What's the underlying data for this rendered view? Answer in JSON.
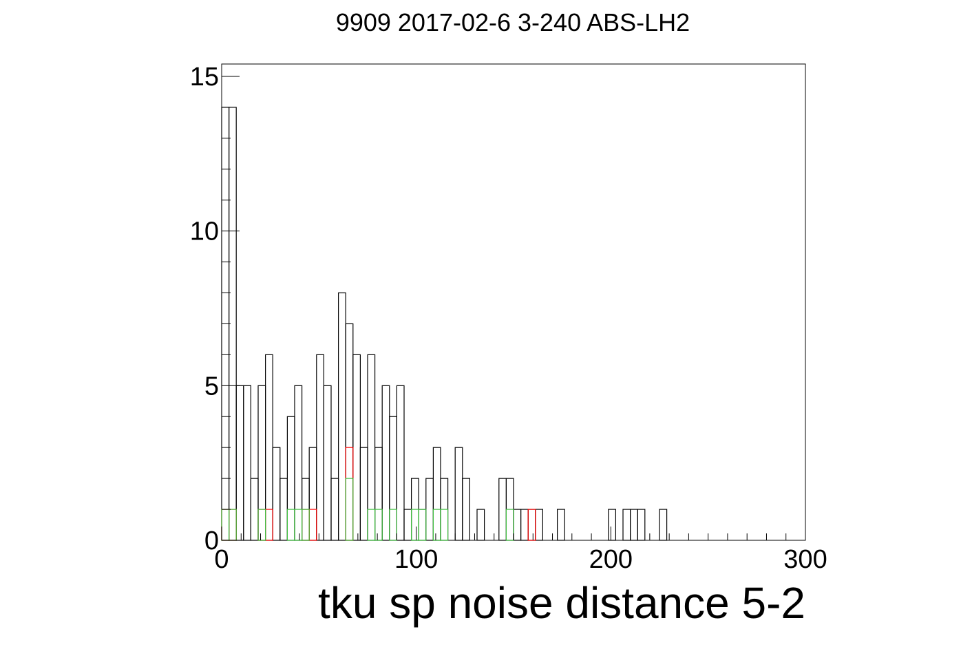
{
  "chart_data": {
    "type": "bar",
    "title": "9909 2017-02-6 3-240 ABS-LH2",
    "xlabel": "tku sp noise distance 5-2",
    "ylabel": "",
    "xlim": [
      0,
      300
    ],
    "ylim": [
      0,
      15.4
    ],
    "bin_width": 3.75,
    "x_ticks": [
      "0",
      "100",
      "200",
      "300"
    ],
    "y_ticks": [
      "0",
      "5",
      "10",
      "15"
    ],
    "grid": false,
    "legend": "none",
    "style": "step-histogram",
    "series": [
      {
        "color": "#000000",
        "values": [
          14,
          14,
          5,
          5,
          2,
          5,
          6,
          3,
          2,
          4,
          5,
          2,
          3,
          6,
          5,
          2,
          8,
          7,
          6,
          3,
          6,
          3,
          5,
          4,
          5,
          1,
          2,
          1,
          2,
          3,
          2,
          0,
          3,
          2,
          0,
          1,
          0,
          0,
          2,
          2,
          1,
          1,
          1,
          1,
          0,
          0,
          1,
          0,
          0,
          0,
          0,
          0,
          0,
          1,
          0,
          1,
          1,
          1,
          0,
          0,
          1,
          0,
          0,
          0,
          0,
          0,
          0,
          0,
          0,
          0,
          0,
          0,
          0,
          0,
          0,
          0,
          0,
          0,
          0,
          0
        ]
      },
      {
        "color": "#ff0000",
        "values": [
          1,
          1,
          0,
          0,
          0,
          1,
          1,
          0,
          0,
          0,
          0,
          1,
          1,
          0,
          0,
          0,
          0,
          3,
          0,
          0,
          0,
          0,
          0,
          0,
          0,
          0,
          0,
          0,
          0,
          0,
          0,
          0,
          0,
          0,
          0,
          0,
          0,
          0,
          0,
          0,
          0,
          0,
          1,
          0,
          0,
          0,
          0,
          0,
          0,
          0,
          0,
          0,
          0,
          0,
          0,
          0,
          0,
          0,
          0,
          0,
          0,
          0,
          0,
          0,
          0,
          0,
          0,
          0,
          0,
          0,
          0,
          0,
          0,
          0,
          0,
          0,
          0,
          0,
          0,
          0
        ]
      },
      {
        "color": "#3fbf3f",
        "values": [
          1,
          1,
          0,
          0,
          0,
          1,
          0,
          0,
          0,
          1,
          1,
          1,
          0,
          0,
          0,
          0,
          0,
          2,
          0,
          0,
          1,
          1,
          0,
          1,
          0,
          0,
          1,
          1,
          0,
          1,
          1,
          0,
          0,
          0,
          0,
          0,
          0,
          0,
          0,
          1,
          0,
          0,
          0,
          0,
          0,
          0,
          0,
          0,
          0,
          0,
          0,
          0,
          0,
          0,
          0,
          0,
          0,
          0,
          0,
          0,
          0,
          0,
          0,
          0,
          0,
          0,
          0,
          0,
          0,
          0,
          0,
          0,
          0,
          0,
          0,
          0,
          0,
          0,
          0,
          0
        ]
      }
    ]
  }
}
